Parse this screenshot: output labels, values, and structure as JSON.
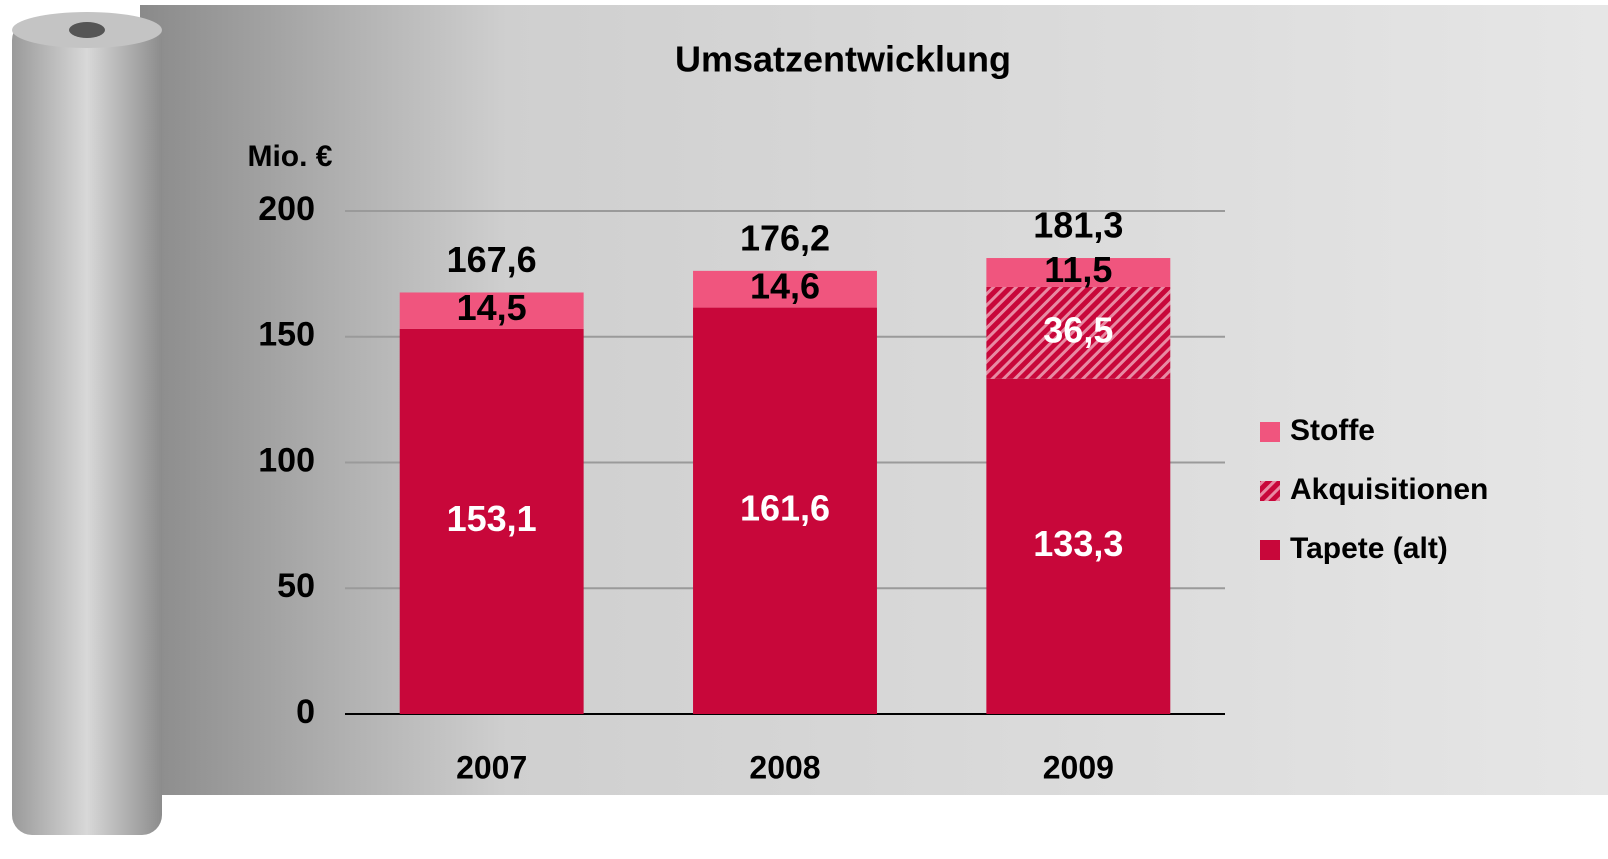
{
  "chart_data": {
    "type": "stacked_bar",
    "title": "Umsatzentwicklung",
    "y_label": "Mio. €",
    "categories": [
      "2007",
      "2008",
      "2009"
    ],
    "series": [
      {
        "name": "Tapete (alt)",
        "color": "#c8073a",
        "values": [
          153.1,
          161.6,
          133.3
        ],
        "value_labels": [
          "153,1",
          "161,6",
          "133,3"
        ],
        "label_color": "#ffffff"
      },
      {
        "name": "Akquisitionen",
        "color": "#c8073a",
        "pattern": "hatch",
        "values": [
          null,
          null,
          36.5
        ],
        "value_labels": [
          null,
          null,
          "36,5"
        ],
        "label_color": "#ffffff"
      },
      {
        "name": "Stoffe",
        "color": "#f0557e",
        "values": [
          14.5,
          14.6,
          11.5
        ],
        "value_labels": [
          "14,5",
          "14,6",
          "11,5"
        ],
        "label_color": "#000000"
      }
    ],
    "totals": [
      167.6,
      176.2,
      181.3
    ],
    "total_labels": [
      "167,6",
      "176,2",
      "181,3"
    ],
    "ylim": [
      0,
      200
    ],
    "yticks": [
      0,
      50,
      100,
      150,
      200
    ],
    "grid": true,
    "legend": "right"
  }
}
